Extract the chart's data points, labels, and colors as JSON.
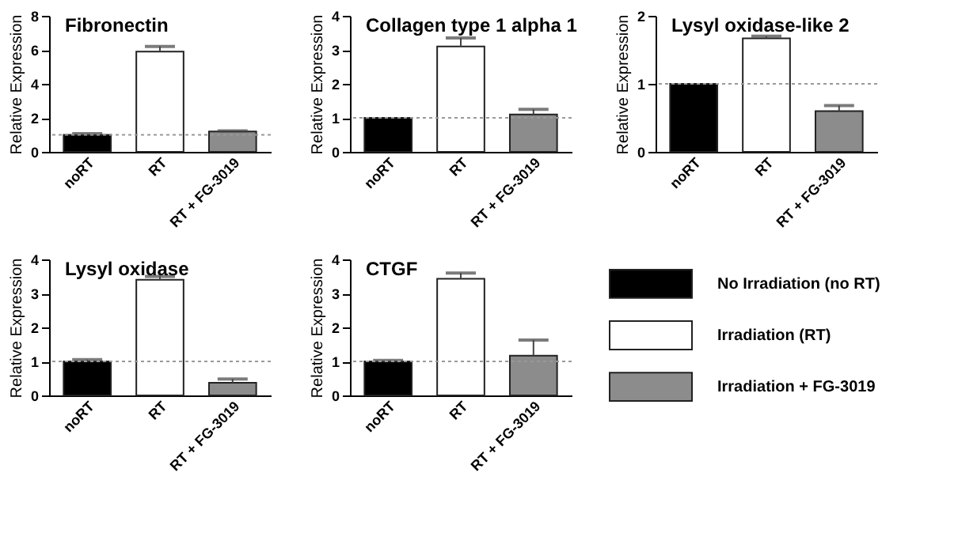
{
  "chart_data": [
    {
      "type": "bar",
      "title": "Fibronectin",
      "ylabel": "Relative Expression",
      "categories": [
        "noRT",
        "RT",
        "RT + FG-3019"
      ],
      "values": [
        1.0,
        5.9,
        1.2
      ],
      "colors": [
        "#000000",
        "#ffffff",
        "#8c8c8c"
      ],
      "errors": [
        [
          1.0,
          1.07
        ],
        [
          5.9,
          6.2
        ],
        [
          1.2,
          1.23
        ]
      ],
      "ylim": [
        0,
        8
      ],
      "yticks": [
        0,
        2,
        4,
        6,
        8
      ],
      "ref_lines": [
        {
          "axis": "y",
          "value": 1,
          "color": "#999999",
          "line_style": "dotted"
        }
      ]
    },
    {
      "type": "bar",
      "title": "Collagen type 1 alpha 1",
      "ylabel": "Relative Expression",
      "categories": [
        "noRT",
        "RT",
        "RT + FG-3019"
      ],
      "values": [
        1.0,
        3.1,
        1.1
      ],
      "colors": [
        "#000000",
        "#ffffff",
        "#8c8c8c"
      ],
      "errors": [
        null,
        [
          3.1,
          3.35
        ],
        [
          1.1,
          1.25
        ]
      ],
      "ylim": [
        0,
        4
      ],
      "yticks": [
        0,
        1,
        2,
        3,
        4
      ],
      "ref_lines": [
        {
          "axis": "y",
          "value": 1,
          "color": "#999999",
          "line_style": "dotted"
        }
      ]
    },
    {
      "type": "bar",
      "title": "Lysyl oxidase-like 2",
      "ylabel": "Relative Expression",
      "categories": [
        "noRT",
        "RT",
        "RT + FG-3019"
      ],
      "values": [
        1.0,
        1.67,
        0.6
      ],
      "colors": [
        "#000000",
        "#ffffff",
        "#8c8c8c"
      ],
      "errors": [
        null,
        [
          1.67,
          1.7
        ],
        [
          0.6,
          0.68
        ]
      ],
      "ylim": [
        0,
        2
      ],
      "yticks": [
        0,
        1,
        2
      ],
      "ref_lines": [
        {
          "axis": "y",
          "value": 1,
          "color": "#999999",
          "line_style": "dotted"
        }
      ]
    },
    {
      "type": "bar",
      "title": "Lysyl oxidase",
      "ylabel": "Relative Expression",
      "categories": [
        "noRT",
        "RT",
        "RT + FG-3019"
      ],
      "values": [
        1.0,
        3.4,
        0.37
      ],
      "colors": [
        "#000000",
        "#ffffff",
        "#8c8c8c"
      ],
      "errors": [
        [
          1.0,
          1.05
        ],
        [
          3.4,
          3.5
        ],
        [
          0.37,
          0.48
        ]
      ],
      "ylim": [
        0,
        4
      ],
      "yticks": [
        0,
        1,
        2,
        3,
        4
      ],
      "ref_lines": [
        {
          "axis": "y",
          "value": 1,
          "color": "#999999",
          "line_style": "dotted"
        }
      ]
    },
    {
      "type": "bar",
      "title": "CTGF",
      "ylabel": "Relative Expression",
      "categories": [
        "noRT",
        "RT",
        "RT + FG-3019"
      ],
      "values": [
        1.0,
        3.43,
        1.17
      ],
      "colors": [
        "#000000",
        "#ffffff",
        "#8c8c8c"
      ],
      "errors": [
        [
          1.0,
          1.03
        ],
        [
          3.43,
          3.6
        ],
        [
          1.17,
          1.63
        ]
      ],
      "ylim": [
        0,
        4
      ],
      "yticks": [
        0,
        1,
        2,
        3,
        4
      ],
      "ref_lines": [
        {
          "axis": "y",
          "value": 1,
          "color": "#999999",
          "line_style": "dotted"
        }
      ]
    },
    {
      "type": "other",
      "categories": [
        "No Irradiation (no RT)",
        "Irradiation (RT)",
        "Irradiation + FG-3019"
      ],
      "colors": [
        "#000000",
        "#ffffff",
        "#8c8c8c"
      ]
    }
  ]
}
